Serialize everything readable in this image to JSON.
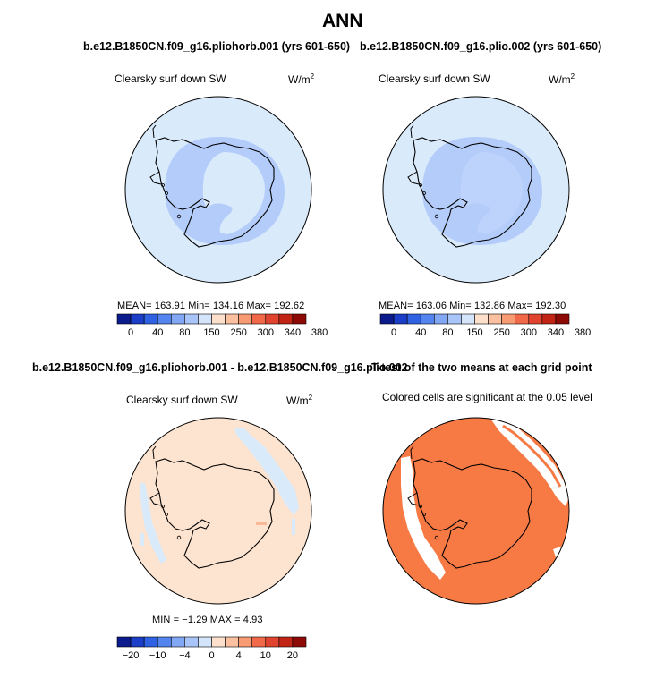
{
  "title": "ANN",
  "panels": [
    {
      "case": "b.e12.B1850CN.f09_g16.pliohorb.001 (yrs 601-650)",
      "field": "Clearsky surf down SW",
      "units_base": "W/m",
      "units_exp": "2",
      "stats_text": "MEAN= 163.91   Min= 134.16   Max= 192.62",
      "colorbar_ticks": [
        "0",
        "40",
        "80",
        "150",
        "250",
        "300",
        "340",
        "380"
      ]
    },
    {
      "case": "b.e12.B1850CN.f09_g16.plio.002 (yrs 601-650)",
      "field": "Clearsky surf down SW",
      "units_base": "W/m",
      "units_exp": "2",
      "stats_text": "MEAN= 163.06   Min= 132.86   Max= 192.30",
      "colorbar_ticks": [
        "0",
        "40",
        "80",
        "150",
        "250",
        "300",
        "340",
        "380"
      ]
    },
    {
      "case": "b.e12.B1850CN.f09_g16.pliohorb.001 - b.e12.B1850CN.f09_g16.plio.002",
      "field": "Clearsky surf down SW",
      "units_base": "W/m",
      "units_exp": "2",
      "stats_text": "MIN =  −1.29  MAX =    4.93",
      "colorbar_ticks": [
        "−20",
        "−10",
        "−4",
        "0",
        "4",
        "10",
        "20"
      ]
    },
    {
      "case": "T-test of the two means at each grid point",
      "field": "Colored cells are significant at the 0.05 level"
    }
  ],
  "colors": {
    "ocean_light_blue": "#d9eafb",
    "ice_blue": "#b3ccfa",
    "inner_blue": "#bed3fb",
    "diff_bg": "#fde4d0",
    "ttest_fill": "#f77a45",
    "colorbar_abs": [
      "#0b1b8c",
      "#1a3ec8",
      "#2f62e3",
      "#5384ef",
      "#82a7f5",
      "#a9c4f9",
      "#d3e4fb",
      "#fde0cc",
      "#fbc0a0",
      "#f89a72",
      "#f2694a",
      "#e1442e",
      "#c12415",
      "#8e0a07"
    ],
    "colorbar_diff": [
      "#0b1b8c",
      "#1a3ec8",
      "#2f62e3",
      "#5384ef",
      "#82a7f5",
      "#a9c4f9",
      "#d3e4fb",
      "#fde0cc",
      "#fbc0a0",
      "#f89a72",
      "#f2694a",
      "#e1442e",
      "#c12415",
      "#8e0a07"
    ]
  }
}
